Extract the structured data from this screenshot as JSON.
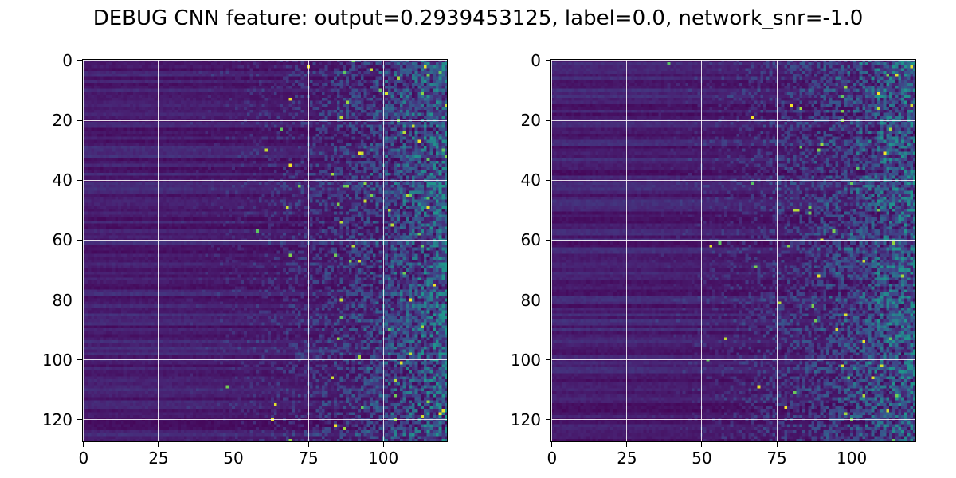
{
  "title": "DEBUG CNN feature: output=0.2939453125, label=0.0, network_snr=-1.0",
  "chart_data": [
    {
      "type": "heatmap",
      "colormap": "viridis",
      "rows": 128,
      "cols": 122,
      "xlim": [
        -0.5,
        121.5
      ],
      "ylim": [
        127.5,
        -0.5
      ],
      "x_ticks": [
        "0",
        "25",
        "50",
        "75",
        "100"
      ],
      "y_ticks": [
        "0",
        "20",
        "40",
        "60",
        "80",
        "100",
        "120"
      ],
      "grid": true,
      "description_of_values": "low uniform values for columns 0-45, increasingly noisy high values toward columns 60-121",
      "seed": 11
    },
    {
      "type": "heatmap",
      "colormap": "viridis",
      "rows": 128,
      "cols": 122,
      "xlim": [
        -0.5,
        121.5
      ],
      "ylim": [
        127.5,
        -0.5
      ],
      "x_ticks": [
        "0",
        "25",
        "50",
        "75",
        "100"
      ],
      "y_ticks": [
        "0",
        "20",
        "40",
        "60",
        "80",
        "100",
        "120"
      ],
      "grid": true,
      "description_of_values": "low uniform values for columns 0-45, increasingly noisy high values toward columns 60-121",
      "seed": 29
    }
  ]
}
